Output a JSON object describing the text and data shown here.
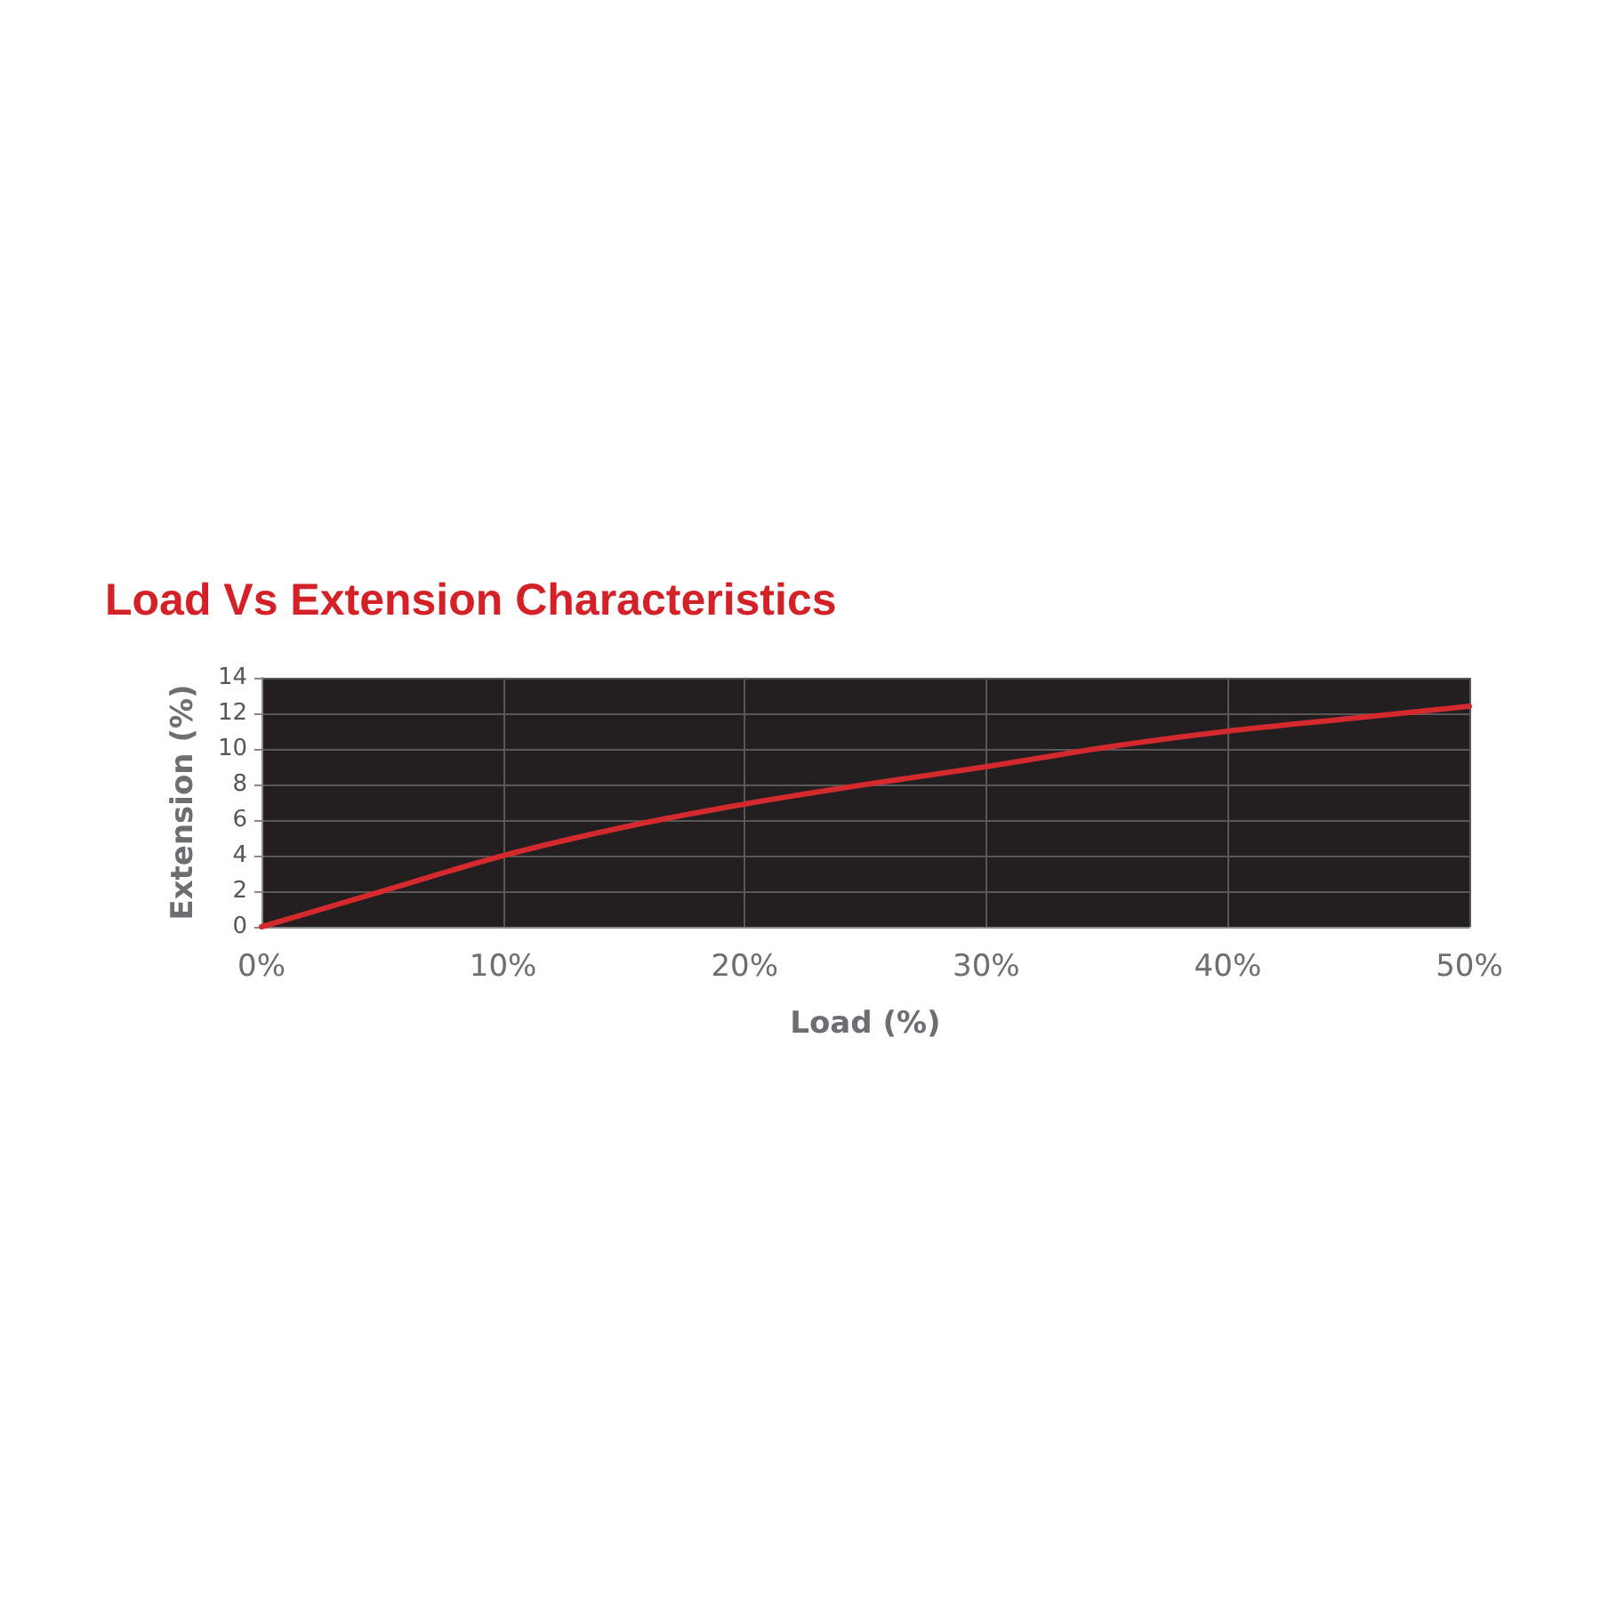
{
  "chart_data": {
    "type": "line",
    "title": "Load Vs Extension Characteristics",
    "xlabel": "Load (%)",
    "ylabel": "Extension (%)",
    "x": [
      0,
      5,
      10,
      15,
      20,
      25,
      30,
      35,
      40,
      45,
      50
    ],
    "series": [
      {
        "color": "#d42a2e",
        "values": [
          0,
          2,
          4,
          5.6,
          6.9,
          8,
          9,
          10.1,
          11,
          11.7,
          12.4
        ]
      }
    ],
    "xlim": [
      0,
      50
    ],
    "xticks": [
      {
        "value": 0,
        "label": "0%"
      },
      {
        "value": 10,
        "label": "10%"
      },
      {
        "value": 20,
        "label": "20%"
      },
      {
        "value": 30,
        "label": "30%"
      },
      {
        "value": 40,
        "label": "40%"
      },
      {
        "value": 50,
        "label": "50%"
      }
    ],
    "ylim": [
      0,
      14
    ],
    "yticks": [
      0,
      2,
      4,
      6,
      8,
      10,
      12,
      14
    ],
    "grid": true,
    "marker": "none",
    "line_style": "solid"
  }
}
